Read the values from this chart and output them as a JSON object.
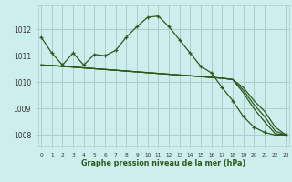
{
  "x": [
    0,
    1,
    2,
    3,
    4,
    5,
    6,
    7,
    8,
    9,
    10,
    11,
    12,
    13,
    14,
    15,
    16,
    17,
    18,
    19,
    20,
    21,
    22,
    23
  ],
  "series_main": [
    1011.7,
    1011.1,
    1010.65,
    1011.1,
    1010.65,
    1011.05,
    1011.0,
    1011.2,
    1011.7,
    1012.1,
    1012.45,
    1012.5,
    1012.1,
    1011.6,
    1011.1,
    1010.6,
    1010.35,
    1009.8,
    1009.3,
    1008.7,
    1008.3,
    1008.1,
    1008.0,
    1008.0
  ],
  "series_flat1": [
    1010.65,
    1010.63,
    1010.6,
    1010.57,
    1010.54,
    1010.51,
    1010.48,
    1010.45,
    1010.42,
    1010.39,
    1010.36,
    1010.33,
    1010.3,
    1010.27,
    1010.24,
    1010.21,
    1010.18,
    1010.15,
    1010.1,
    1009.8,
    1009.3,
    1008.9,
    1008.3,
    1008.0
  ],
  "series_flat2": [
    1010.65,
    1010.63,
    1010.6,
    1010.57,
    1010.54,
    1010.51,
    1010.48,
    1010.45,
    1010.42,
    1010.39,
    1010.36,
    1010.33,
    1010.3,
    1010.27,
    1010.24,
    1010.21,
    1010.18,
    1010.15,
    1010.1,
    1009.7,
    1009.15,
    1008.7,
    1008.15,
    1008.0
  ],
  "series_flat3": [
    1010.65,
    1010.63,
    1010.6,
    1010.57,
    1010.54,
    1010.51,
    1010.48,
    1010.45,
    1010.42,
    1010.39,
    1010.36,
    1010.33,
    1010.3,
    1010.27,
    1010.24,
    1010.21,
    1010.18,
    1010.15,
    1010.1,
    1009.6,
    1009.0,
    1008.5,
    1008.05,
    1008.0
  ],
  "line_color": "#2d5a1b",
  "bg_color": "#cceeed",
  "grid_color": "#aacccc",
  "xlabel": "Graphe pression niveau de la mer (hPa)",
  "ylim": [
    1007.6,
    1012.9
  ],
  "yticks": [
    1008,
    1009,
    1010,
    1011,
    1012
  ],
  "xticks": [
    0,
    1,
    2,
    3,
    4,
    5,
    6,
    7,
    8,
    9,
    10,
    11,
    12,
    13,
    14,
    15,
    16,
    17,
    18,
    19,
    20,
    21,
    22,
    23
  ]
}
